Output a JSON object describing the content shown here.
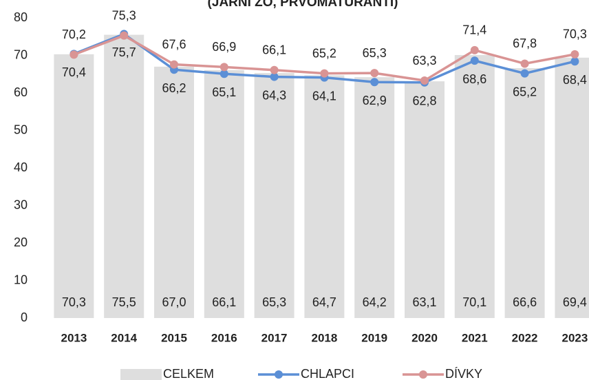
{
  "chart_data": {
    "type": "combo",
    "title": "(JARNÍ ZO, PRVOMATURANTI)",
    "categories": [
      "2013",
      "2014",
      "2015",
      "2016",
      "2017",
      "2018",
      "2019",
      "2020",
      "2021",
      "2022",
      "2023"
    ],
    "ylim": [
      0,
      80
    ],
    "yticks": [
      0,
      10,
      20,
      30,
      40,
      50,
      60,
      70,
      80
    ],
    "legend": "bottom",
    "series": [
      {
        "name": "CELKEM",
        "type": "bar",
        "color": "#dedede",
        "label_color": "#222222",
        "values": [
          70.3,
          75.5,
          67.0,
          66.1,
          65.3,
          64.7,
          64.2,
          63.1,
          70.1,
          66.6,
          69.4
        ],
        "value_labels": [
          "70,3",
          "75,5",
          "67,0",
          "66,1",
          "65,3",
          "64,7",
          "64,2",
          "63,1",
          "70,1",
          "66,6",
          "69,4"
        ]
      },
      {
        "name": "CHLAPCI",
        "type": "line",
        "color": "#5b8fd6",
        "label_color": "#2f4f8a",
        "label_side": "below",
        "values": [
          70.4,
          75.7,
          66.2,
          65.1,
          64.3,
          64.1,
          62.9,
          62.8,
          68.6,
          65.2,
          68.4
        ],
        "value_labels": [
          "70,4",
          "75,7",
          "66,2",
          "65,1",
          "64,3",
          "64,1",
          "62,9",
          "62,8",
          "68,6",
          "65,2",
          "68,4"
        ]
      },
      {
        "name": "DÍVKY",
        "type": "line",
        "color": "#d99494",
        "label_color": "#a33c3c",
        "label_side": "above",
        "values": [
          70.2,
          75.3,
          67.6,
          66.9,
          66.1,
          65.2,
          65.3,
          63.3,
          71.4,
          67.8,
          70.3
        ],
        "value_labels": [
          "70,2",
          "75,3",
          "67,6",
          "66,9",
          "66,1",
          "65,2",
          "65,3",
          "63,3",
          "71,4",
          "67,8",
          "70,3"
        ]
      }
    ]
  }
}
